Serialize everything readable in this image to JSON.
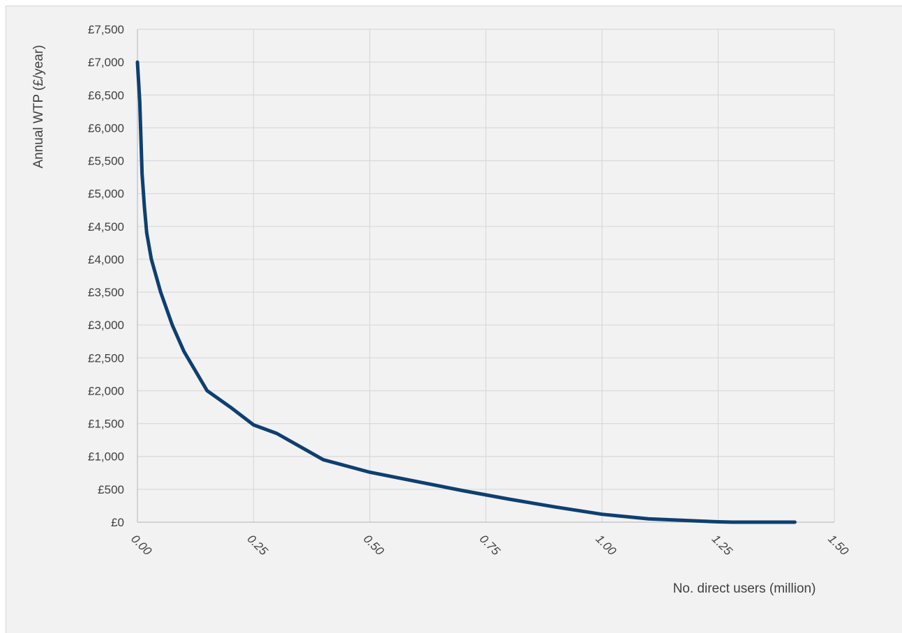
{
  "chart_data": {
    "type": "line",
    "xlabel": "No. direct users (million)",
    "ylabel": "Annual WTP (£/year)",
    "xlim": [
      0,
      1.5
    ],
    "ylim": [
      0,
      7500
    ],
    "x_ticks": [
      "0.00",
      "0.25",
      "0.50",
      "0.75",
      "1.00",
      "1.25",
      "1.50"
    ],
    "x_tick_values": [
      0,
      0.25,
      0.5,
      0.75,
      1.0,
      1.25,
      1.5
    ],
    "y_ticks": [
      "£0",
      "£500",
      "£1,000",
      "£1,500",
      "£2,000",
      "£2,500",
      "£3,000",
      "£3,500",
      "£4,000",
      "£4,500",
      "£5,000",
      "£5,500",
      "£6,000",
      "£6,500",
      "£7,000",
      "£7,500"
    ],
    "y_tick_values": [
      0,
      500,
      1000,
      1500,
      2000,
      2500,
      3000,
      3500,
      4000,
      4500,
      5000,
      5500,
      6000,
      6500,
      7000,
      7500
    ],
    "grid": true,
    "legend": "none",
    "series": [
      {
        "color": "#0e3f70",
        "x": [
          0.0,
          0.005,
          0.01,
          0.015,
          0.02,
          0.03,
          0.05,
          0.075,
          0.1,
          0.15,
          0.2,
          0.25,
          0.3,
          0.35,
          0.4,
          0.5,
          0.6,
          0.7,
          0.8,
          0.9,
          1.0,
          1.1,
          1.2,
          1.25,
          1.28,
          1.35,
          1.415
        ],
        "y": [
          7000,
          6400,
          5300,
          4800,
          4400,
          4000,
          3500,
          3000,
          2600,
          2000,
          1750,
          1480,
          1350,
          1150,
          950,
          760,
          620,
          480,
          350,
          230,
          120,
          50,
          20,
          5,
          0,
          0,
          0
        ]
      }
    ]
  }
}
